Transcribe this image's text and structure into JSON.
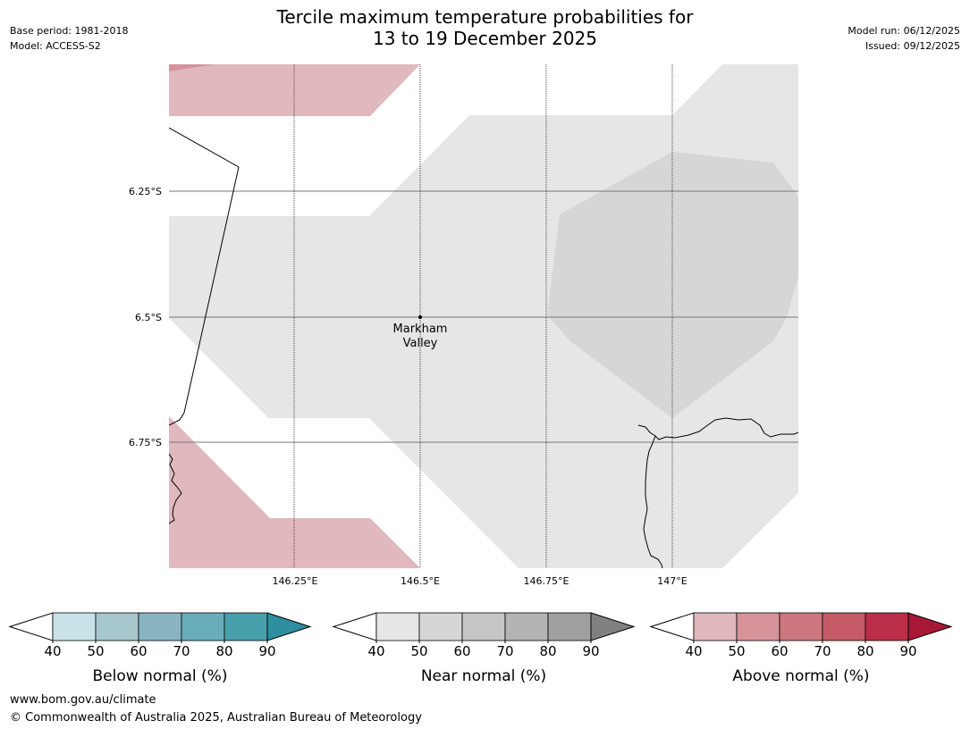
{
  "header": {
    "base_period": "Base period: 1981-2018",
    "model": "Model: ACCESS-S2",
    "title_line1": "Tercile maximum temperature probabilities for",
    "title_line2": "13 to 19 December 2025",
    "model_run": "Model run: 06/12/2025",
    "issued": "Issued: 09/12/2025"
  },
  "map": {
    "lat_labels": [
      "6.25°S",
      "6.5°S",
      "6.75°S"
    ],
    "lon_labels": [
      "146.25°E",
      "146.5°E",
      "146.75°E",
      "147°E"
    ],
    "place_name_line1": "Markham",
    "place_name_line2": "Valley"
  },
  "legends": [
    {
      "label": "Below normal (%)",
      "ticks": [
        "40",
        "50",
        "60",
        "70",
        "80",
        "90"
      ],
      "colors": [
        "#c9e2e7",
        "#a6c7cc",
        "#89b5c1",
        "#6aadba",
        "#48a0ad",
        "#2e8fa0"
      ]
    },
    {
      "label": "Near normal (%)",
      "ticks": [
        "40",
        "50",
        "60",
        "70",
        "80",
        "90"
      ],
      "colors": [
        "#e6e6e6",
        "#d6d6d6",
        "#c6c6c6",
        "#b4b4b4",
        "#a0a0a0",
        "#808080"
      ]
    },
    {
      "label": "Above normal (%)",
      "ticks": [
        "40",
        "50",
        "60",
        "70",
        "80",
        "90"
      ],
      "colors": [
        "#e0b8bd",
        "#d6939a",
        "#cc767d",
        "#c45a66",
        "#ba2f47",
        "#a81836"
      ]
    }
  ],
  "footer": {
    "website": "www.bom.gov.au/climate",
    "copyright": "© Commonwealth of Australia 2025, Australian Bureau of Meteorology"
  }
}
